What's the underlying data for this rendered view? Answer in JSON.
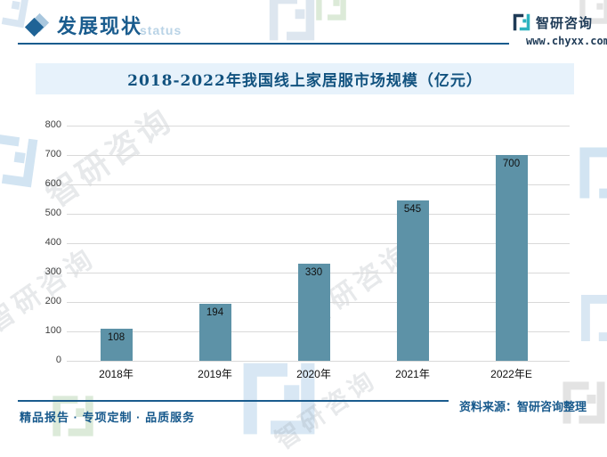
{
  "header": {
    "section_title": "发展现状",
    "section_watermark": "status",
    "brand_name": "智研咨询",
    "brand_site": "www.chyxx.com"
  },
  "chart_data": {
    "type": "bar",
    "title": "2018-2022年我国线上家居服市场规模（亿元）",
    "categories": [
      "2018年",
      "2019年",
      "2020年",
      "2021年",
      "2022年E"
    ],
    "values": [
      108,
      194,
      330,
      545,
      700
    ],
    "xlabel": "",
    "ylabel": "",
    "ylim": [
      0,
      800
    ],
    "ytick_step": 100,
    "grid": true,
    "legend": false,
    "data_labels": true,
    "bar_color": "#5d92a7",
    "grid_color": "#d9d9d9"
  },
  "footer": {
    "services": "精品报告 · 专项定制 · 品质服务",
    "source": "资料来源：智研咨询整理"
  },
  "watermark": {
    "diagonal_text": "智研咨询"
  },
  "colors": {
    "accent_blue": "#1a5c8e",
    "title_text": "#11527f",
    "band_bg": "#e7f2fb",
    "bar": "#5d92a7",
    "grid": "#d9d9d9",
    "brand_navy": "#1f3b57",
    "brand_teal": "#2fb3c0"
  }
}
